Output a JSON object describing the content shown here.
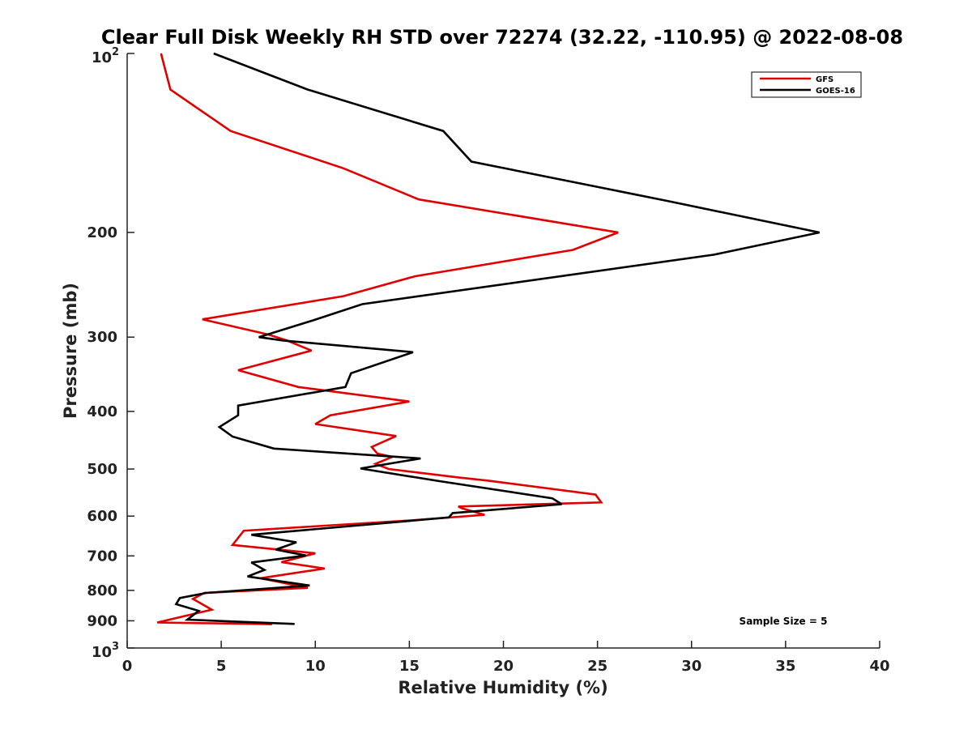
{
  "chart_data": {
    "type": "line",
    "title": "Clear Full Disk Weekly RH STD over 72274 (32.22, -110.95) @ 2022-08-08",
    "xlabel": "Relative Humidity (%)",
    "ylabel": "Pressure (mb)",
    "xlim": [
      0,
      40
    ],
    "ylim": [
      100,
      1000
    ],
    "y_scale": "log",
    "y_reversed": true,
    "grid": false,
    "legend_position": "top-right",
    "x_ticks": [
      0,
      5,
      10,
      15,
      20,
      25,
      30,
      35,
      40
    ],
    "y_ticks": [
      {
        "value": 100,
        "base": "10",
        "exp": "2"
      },
      {
        "value": 200,
        "label": "200"
      },
      {
        "value": 300,
        "label": "300"
      },
      {
        "value": 400,
        "label": "400"
      },
      {
        "value": 500,
        "label": "500"
      },
      {
        "value": 600,
        "label": "600"
      },
      {
        "value": 700,
        "label": "700"
      },
      {
        "value": 800,
        "label": "800"
      },
      {
        "value": 900,
        "label": "900"
      },
      {
        "value": 1000,
        "base": "10",
        "exp": "3"
      }
    ],
    "annotation": "Sample Size = 5",
    "series": [
      {
        "name": "GFS",
        "color": "#e00000",
        "points": [
          [
            1.8,
            100
          ],
          [
            2.3,
            115
          ],
          [
            5.5,
            135
          ],
          [
            11.5,
            156
          ],
          [
            15.5,
            176
          ],
          [
            26.1,
            200
          ],
          [
            23.7,
            214
          ],
          [
            15.3,
            237
          ],
          [
            11.5,
            256
          ],
          [
            4.0,
            280
          ],
          [
            7.5,
            297
          ],
          [
            8.5,
            304
          ],
          [
            9.8,
            316
          ],
          [
            5.9,
            341
          ],
          [
            9.1,
            364
          ],
          [
            15.0,
            385
          ],
          [
            10.8,
            406
          ],
          [
            10.0,
            420
          ],
          [
            14.3,
            440
          ],
          [
            13.0,
            459
          ],
          [
            13.3,
            471
          ],
          [
            14.1,
            477
          ],
          [
            13.2,
            490
          ],
          [
            13.9,
            500
          ],
          [
            17.7,
            517
          ],
          [
            19.2,
            523
          ],
          [
            24.9,
            552
          ],
          [
            25.2,
            569
          ],
          [
            17.6,
            578
          ],
          [
            17.8,
            582
          ],
          [
            19.0,
            597
          ],
          [
            15.1,
            610
          ],
          [
            6.2,
            635
          ],
          [
            5.6,
            671
          ],
          [
            10.0,
            693
          ],
          [
            8.2,
            717
          ],
          [
            10.5,
            735
          ],
          [
            7.1,
            763
          ],
          [
            9.6,
            792
          ],
          [
            4.1,
            808
          ],
          [
            3.5,
            827
          ],
          [
            4.5,
            862
          ],
          [
            1.6,
            906
          ],
          [
            7.7,
            912
          ]
        ]
      },
      {
        "name": "GOES-16",
        "color": "#000000",
        "points": [
          [
            4.6,
            100
          ],
          [
            9.6,
            115
          ],
          [
            16.8,
            135
          ],
          [
            18.3,
            152
          ],
          [
            28.7,
            177
          ],
          [
            36.8,
            200
          ],
          [
            31.2,
            218
          ],
          [
            12.5,
            264
          ],
          [
            9.9,
            281
          ],
          [
            7.0,
            300
          ],
          [
            8.3,
            304
          ],
          [
            15.2,
            318
          ],
          [
            11.9,
            345
          ],
          [
            11.6,
            364
          ],
          [
            5.9,
            391
          ],
          [
            5.9,
            406
          ],
          [
            4.9,
            425
          ],
          [
            5.6,
            441
          ],
          [
            7.8,
            462
          ],
          [
            15.6,
            480
          ],
          [
            12.4,
            499
          ],
          [
            16.6,
            524
          ],
          [
            22.6,
            560
          ],
          [
            23.1,
            573
          ],
          [
            17.3,
            593
          ],
          [
            17.1,
            603
          ],
          [
            6.6,
            645
          ],
          [
            9.0,
            664
          ],
          [
            7.9,
            683
          ],
          [
            9.5,
            699
          ],
          [
            6.6,
            718
          ],
          [
            7.3,
            739
          ],
          [
            6.4,
            758
          ],
          [
            9.7,
            785
          ],
          [
            4.2,
            808
          ],
          [
            2.8,
            824
          ],
          [
            2.6,
            844
          ],
          [
            3.8,
            866
          ],
          [
            3.2,
            896
          ],
          [
            8.9,
            911
          ]
        ]
      }
    ]
  }
}
